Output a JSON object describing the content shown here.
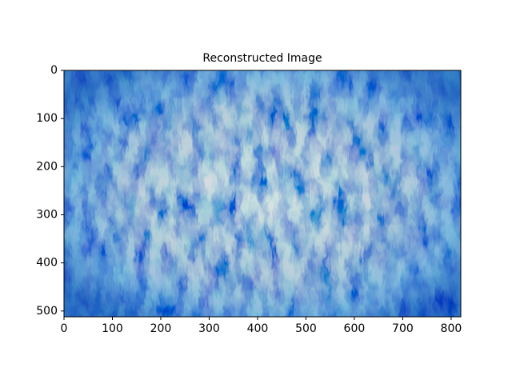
{
  "chart_data": {
    "type": "image",
    "title": "Reconstructed Image",
    "xlim": [
      0,
      820
    ],
    "ylim": [
      512,
      0
    ],
    "xticks": [
      0,
      100,
      200,
      300,
      400,
      500,
      600,
      700,
      800
    ],
    "yticks": [
      0,
      100,
      200,
      300,
      400,
      500
    ]
  }
}
